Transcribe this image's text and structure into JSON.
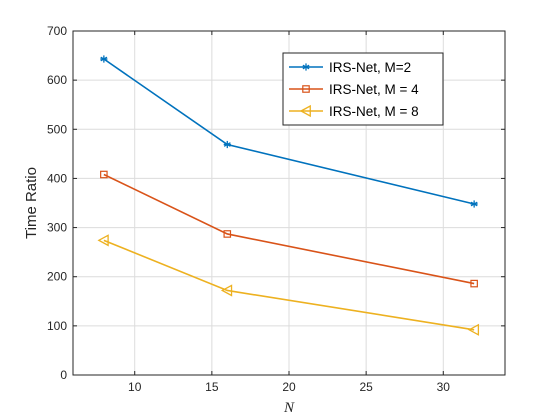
{
  "chart_data": {
    "type": "line",
    "xlabel": "N",
    "ylabel": "Time Ratio",
    "xlim": [
      6,
      34
    ],
    "ylim": [
      0,
      700
    ],
    "xticks": [
      10,
      15,
      20,
      25,
      30
    ],
    "yticks": [
      0,
      100,
      200,
      300,
      400,
      500,
      600,
      700
    ],
    "grid": true,
    "legend_position": "top-right",
    "x": [
      8,
      16,
      32
    ],
    "series": [
      {
        "name": "IRS-Net, M=2",
        "values": [
          643,
          469,
          348
        ],
        "color": "#0072BD",
        "marker": "asterisk"
      },
      {
        "name": "IRS-Net, M = 4",
        "values": [
          408,
          287,
          186
        ],
        "color": "#D95319",
        "marker": "square"
      },
      {
        "name": "IRS-Net, M = 8",
        "values": [
          274,
          172,
          92
        ],
        "color": "#EDB120",
        "marker": "triangle-left"
      }
    ]
  }
}
